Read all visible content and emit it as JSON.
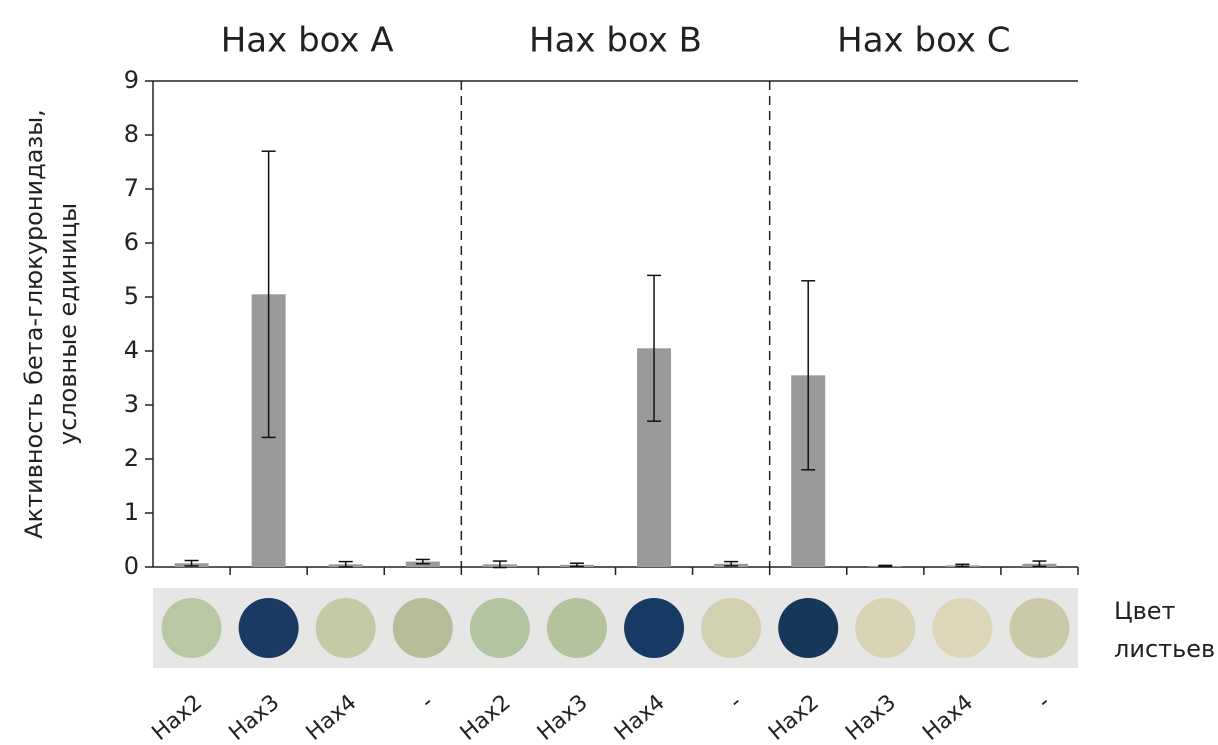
{
  "chart_data": {
    "type": "bar",
    "ylabel": [
      "Активность бета-глюкуронидазы,",
      "условные единицы"
    ],
    "side_label": [
      "Цвет",
      "листьев"
    ],
    "ylim": [
      0,
      9
    ],
    "yticks": [
      0,
      1,
      2,
      3,
      4,
      5,
      6,
      7,
      8,
      9
    ],
    "color": "#999999",
    "groups": [
      {
        "title": "Hax box A",
        "categories": [
          "Hax2",
          "Hax3",
          "Hax4",
          "-"
        ],
        "values": [
          0.07,
          5.05,
          0.05,
          0.1
        ],
        "errors": [
          0.05,
          2.65,
          0.05,
          0.04
        ],
        "disc_colors": [
          "#b9c7a4",
          "#1a3a63",
          "#c3caa6",
          "#b6bd98"
        ]
      },
      {
        "title": "Hax box B",
        "categories": [
          "Hax2",
          "Hax3",
          "Hax4",
          "-"
        ],
        "values": [
          0.05,
          0.04,
          4.05,
          0.06
        ],
        "errors": [
          0.06,
          0.03,
          1.35,
          0.04
        ],
        "disc_colors": [
          "#b3c4a0",
          "#b4c29d",
          "#163a63",
          "#d1d0b0"
        ]
      },
      {
        "title": "Hax box C",
        "categories": [
          "Hax2",
          "Hax3",
          "Hax4",
          "-"
        ],
        "values": [
          3.55,
          0.02,
          0.03,
          0.06
        ],
        "errors": [
          1.75,
          0.01,
          0.02,
          0.05
        ],
        "disc_colors": [
          "#163759",
          "#d8d3b4",
          "#ddd6b8",
          "#cac9aa"
        ]
      }
    ]
  }
}
